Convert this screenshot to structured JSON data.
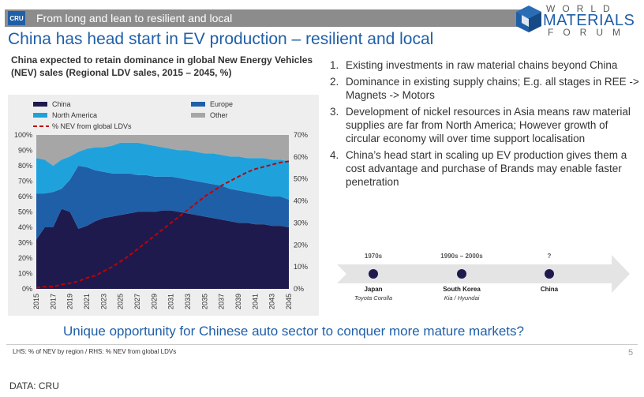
{
  "header": {
    "logo": "CRU",
    "banner": "From long and lean to resilient and local",
    "brand": {
      "line1": "WORLD",
      "line2": "MATERIALS",
      "line3": "FORUM"
    }
  },
  "title": "China has head start in EV production – resilient and local",
  "colors": {
    "china": "#1f1a4d",
    "europe": "#1f5fa8",
    "north_america": "#1fa2dc",
    "other": "#a6a6a6",
    "nev": "#c00000",
    "title": "#1f5fa8"
  },
  "chart_data": {
    "type": "area",
    "title": "China expected to retain dominance in global New Energy Vehicles (NEV) sales (Regional LDV sales, 2015 – 2045, %)",
    "x": [
      2015,
      2016,
      2017,
      2018,
      2019,
      2020,
      2021,
      2022,
      2023,
      2024,
      2025,
      2026,
      2027,
      2028,
      2029,
      2030,
      2031,
      2032,
      2033,
      2034,
      2035,
      2036,
      2037,
      2038,
      2039,
      2040,
      2041,
      2042,
      2043,
      2044,
      2045
    ],
    "x_ticks": [
      "2015",
      "2017",
      "2019",
      "2021",
      "2023",
      "2025",
      "2027",
      "2029",
      "2031",
      "2033",
      "2035",
      "2037",
      "2039",
      "2041",
      "2043",
      "2045"
    ],
    "left_axis": {
      "ticks": [
        "0%",
        "10%",
        "20%",
        "30%",
        "40%",
        "50%",
        "60%",
        "70%",
        "80%",
        "90%",
        "100%"
      ],
      "ylim": [
        0,
        100
      ]
    },
    "right_axis": {
      "ticks": [
        "0%",
        "10%",
        "20%",
        "30%",
        "40%",
        "50%",
        "60%",
        "70%"
      ],
      "ylim": [
        0,
        70
      ]
    },
    "series": [
      {
        "name": "China",
        "axis": "left",
        "values": [
          32,
          40,
          40,
          52,
          50,
          39,
          41,
          44,
          46,
          47,
          48,
          49,
          50,
          50,
          50,
          51,
          51,
          50,
          49,
          48,
          47,
          46,
          45,
          44,
          43,
          43,
          42,
          42,
          41,
          41,
          40
        ]
      },
      {
        "name": "Europe",
        "axis": "left",
        "values": [
          30,
          22,
          23,
          13,
          21,
          41,
          38,
          33,
          30,
          28,
          27,
          26,
          24,
          24,
          23,
          22,
          22,
          22,
          22,
          22,
          22,
          22,
          22,
          21,
          21,
          20,
          20,
          19,
          19,
          19,
          18
        ]
      },
      {
        "name": "North America",
        "axis": "left",
        "values": [
          23,
          22,
          17,
          19,
          15,
          9,
          12,
          15,
          16,
          18,
          20,
          20,
          21,
          20,
          20,
          19,
          18,
          18,
          19,
          19,
          19,
          20,
          20,
          21,
          22,
          22,
          23,
          24,
          24,
          24,
          25
        ]
      },
      {
        "name": "Other",
        "axis": "left",
        "values": [
          15,
          16,
          20,
          16,
          14,
          11,
          9,
          8,
          8,
          7,
          5,
          5,
          5,
          6,
          7,
          8,
          9,
          10,
          10,
          11,
          12,
          12,
          13,
          14,
          14,
          15,
          15,
          15,
          16,
          16,
          17
        ]
      },
      {
        "name": "% NEV from global LDVs",
        "axis": "right",
        "style": "dashed",
        "values": [
          0.5,
          1,
          1,
          2,
          2.5,
          3.5,
          5,
          6,
          8,
          10,
          12.5,
          15,
          18,
          21,
          24,
          27,
          30,
          33,
          36,
          39,
          42,
          44.5,
          47,
          49,
          51,
          53,
          54.5,
          55.5,
          56.5,
          57.5,
          58
        ]
      }
    ],
    "legend": [
      "China",
      "Europe",
      "North America",
      "Other",
      "% NEV from global LDVs"
    ],
    "legend_position": "top-left"
  },
  "reasons": [
    {
      "num": "1.",
      "text": "Existing investments in raw material chains beyond China"
    },
    {
      "num": "2.",
      "text": "Dominance in existing supply chains; E.g. all stages in REE -> Magnets -> Motors"
    },
    {
      "num": "3.",
      "text": "Development of nickel resources in Asia means raw material supplies are far from North America; However growth of circular economy will over time support localisation"
    },
    {
      "num": "4.",
      "text": "China’s head start in scaling up EV production gives them a cost advantage and purchase of Brands may enable faster penetration"
    }
  ],
  "timeline": [
    {
      "period": "1970s",
      "country": "Japan",
      "car": "Toyota Corolla"
    },
    {
      "period": "1990s – 2000s",
      "country": "South Korea",
      "car": "Kia / Hyundai"
    },
    {
      "period": "?",
      "country": "China",
      "car": ""
    }
  ],
  "tagline": "Unique opportunity for Chinese auto sector to conquer more mature markets?",
  "footnote": "LHS: % of NEV by region / RHS: % NEV from global LDVs",
  "page_number": "5",
  "source": "DATA: CRU"
}
